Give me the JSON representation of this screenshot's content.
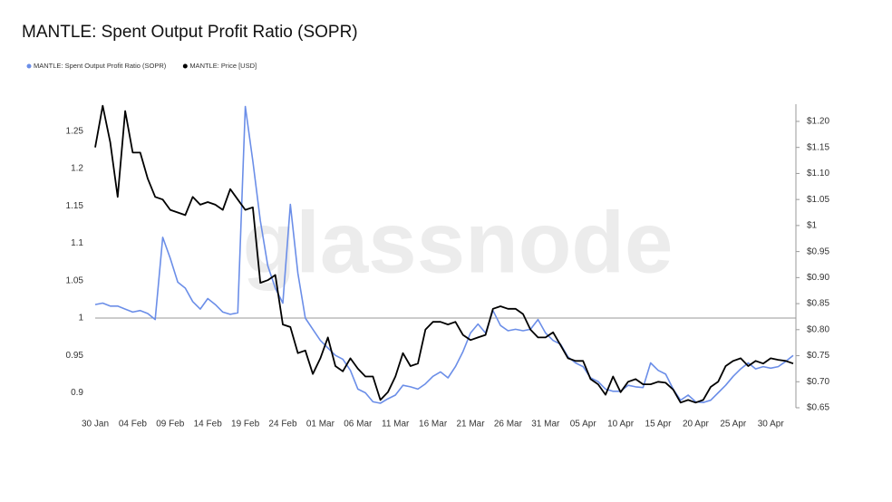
{
  "chart_data": {
    "type": "line",
    "title": "MANTLE: Spent Output Profit Ratio (SOPR)",
    "watermark": "glassnode",
    "categories": [
      "30 Jan",
      null,
      null,
      null,
      null,
      "04 Feb",
      null,
      null,
      null,
      null,
      "09 Feb",
      null,
      null,
      null,
      null,
      "14 Feb",
      null,
      null,
      null,
      null,
      "19 Feb",
      null,
      null,
      null,
      null,
      "24 Feb",
      null,
      null,
      null,
      null,
      "01 Mar",
      null,
      null,
      null,
      null,
      "06 Mar",
      null,
      null,
      null,
      null,
      "11 Mar",
      null,
      null,
      null,
      null,
      "16 Mar",
      null,
      null,
      null,
      null,
      "21 Mar",
      null,
      null,
      null,
      null,
      "26 Mar",
      null,
      null,
      null,
      null,
      "31 Mar",
      null,
      null,
      null,
      null,
      "05 Apr",
      null,
      null,
      null,
      null,
      "10 Apr",
      null,
      null,
      null,
      null,
      "15 Apr",
      null,
      null,
      null,
      null,
      "20 Apr",
      null,
      null,
      null,
      null,
      "25 Apr",
      null,
      null,
      null,
      null,
      "30 Apr",
      null,
      null,
      null
    ],
    "series": [
      {
        "name": "MANTLE: Spent Output Profit Ratio (SOPR)",
        "color": "#6b8ee8",
        "axis": "y",
        "values": [
          1.018,
          1.02,
          1.016,
          1.016,
          1.012,
          1.008,
          1.01,
          1.006,
          0.998,
          1.108,
          1.08,
          1.048,
          1.04,
          1.022,
          1.012,
          1.026,
          1.018,
          1.008,
          1.005,
          1.007,
          1.283,
          1.21,
          1.13,
          1.07,
          1.04,
          1.02,
          1.152,
          1.06,
          1.0,
          0.985,
          0.97,
          0.96,
          0.95,
          0.945,
          0.93,
          0.905,
          0.9,
          0.888,
          0.886,
          0.892,
          0.897,
          0.91,
          0.908,
          0.905,
          0.912,
          0.922,
          0.928,
          0.92,
          0.935,
          0.955,
          0.98,
          0.992,
          0.98,
          1.01,
          0.99,
          0.983,
          0.985,
          0.983,
          0.985,
          0.998,
          0.98,
          0.97,
          0.965,
          0.948,
          0.94,
          0.935,
          0.92,
          0.915,
          0.905,
          0.902,
          0.902,
          0.91,
          0.908,
          0.907,
          0.94,
          0.93,
          0.925,
          0.905,
          0.89,
          0.897,
          0.888,
          0.887,
          0.89,
          0.9,
          0.91,
          0.922,
          0.932,
          0.94,
          0.932,
          0.935,
          0.933,
          0.935,
          0.942,
          0.95
        ]
      },
      {
        "name": "MANTLE: Price [USD]",
        "color": "#000000",
        "axis": "y2",
        "values": [
          1.15,
          1.23,
          1.16,
          1.055,
          1.22,
          1.14,
          1.14,
          1.09,
          1.055,
          1.05,
          1.03,
          1.025,
          1.02,
          1.055,
          1.04,
          1.045,
          1.04,
          1.03,
          1.07,
          1.05,
          1.03,
          1.035,
          0.89,
          0.895,
          0.905,
          0.81,
          0.805,
          0.755,
          0.76,
          0.715,
          0.745,
          0.785,
          0.73,
          0.72,
          0.745,
          0.725,
          0.71,
          0.71,
          0.665,
          0.68,
          0.71,
          0.755,
          0.73,
          0.735,
          0.8,
          0.815,
          0.815,
          0.81,
          0.815,
          0.79,
          0.78,
          0.785,
          0.79,
          0.84,
          0.845,
          0.84,
          0.84,
          0.83,
          0.8,
          0.785,
          0.785,
          0.795,
          0.77,
          0.745,
          0.74,
          0.74,
          0.705,
          0.695,
          0.675,
          0.71,
          0.68,
          0.7,
          0.705,
          0.695,
          0.695,
          0.7,
          0.698,
          0.685,
          0.66,
          0.665,
          0.66,
          0.665,
          0.69,
          0.7,
          0.73,
          0.74,
          0.745,
          0.73,
          0.74,
          0.735,
          0.745,
          0.742,
          0.74,
          0.735
        ]
      }
    ],
    "ylim": [
      0.88,
      1.286
    ],
    "yticks": [
      0.9,
      0.95,
      1,
      1.05,
      1.1,
      1.15,
      1.2,
      1.25
    ],
    "y2lim": [
      0.65,
      1.233
    ],
    "y2ticks": [
      {
        "value": 0.65,
        "label": "$0.65"
      },
      {
        "value": 0.7,
        "label": "$0.70"
      },
      {
        "value": 0.75,
        "label": "$0.75"
      },
      {
        "value": 0.8,
        "label": "$0.80"
      },
      {
        "value": 0.85,
        "label": "$0.85"
      },
      {
        "value": 0.9,
        "label": "$0.90"
      },
      {
        "value": 0.95,
        "label": "$0.95"
      },
      {
        "value": 1,
        "label": "$1"
      },
      {
        "value": 1.05,
        "label": "$1.05"
      },
      {
        "value": 1.1,
        "label": "$1.10"
      },
      {
        "value": 1.15,
        "label": "$1.15"
      },
      {
        "value": 1.2,
        "label": "$1.20"
      }
    ],
    "reference_line": 1,
    "legend": "top-left"
  }
}
